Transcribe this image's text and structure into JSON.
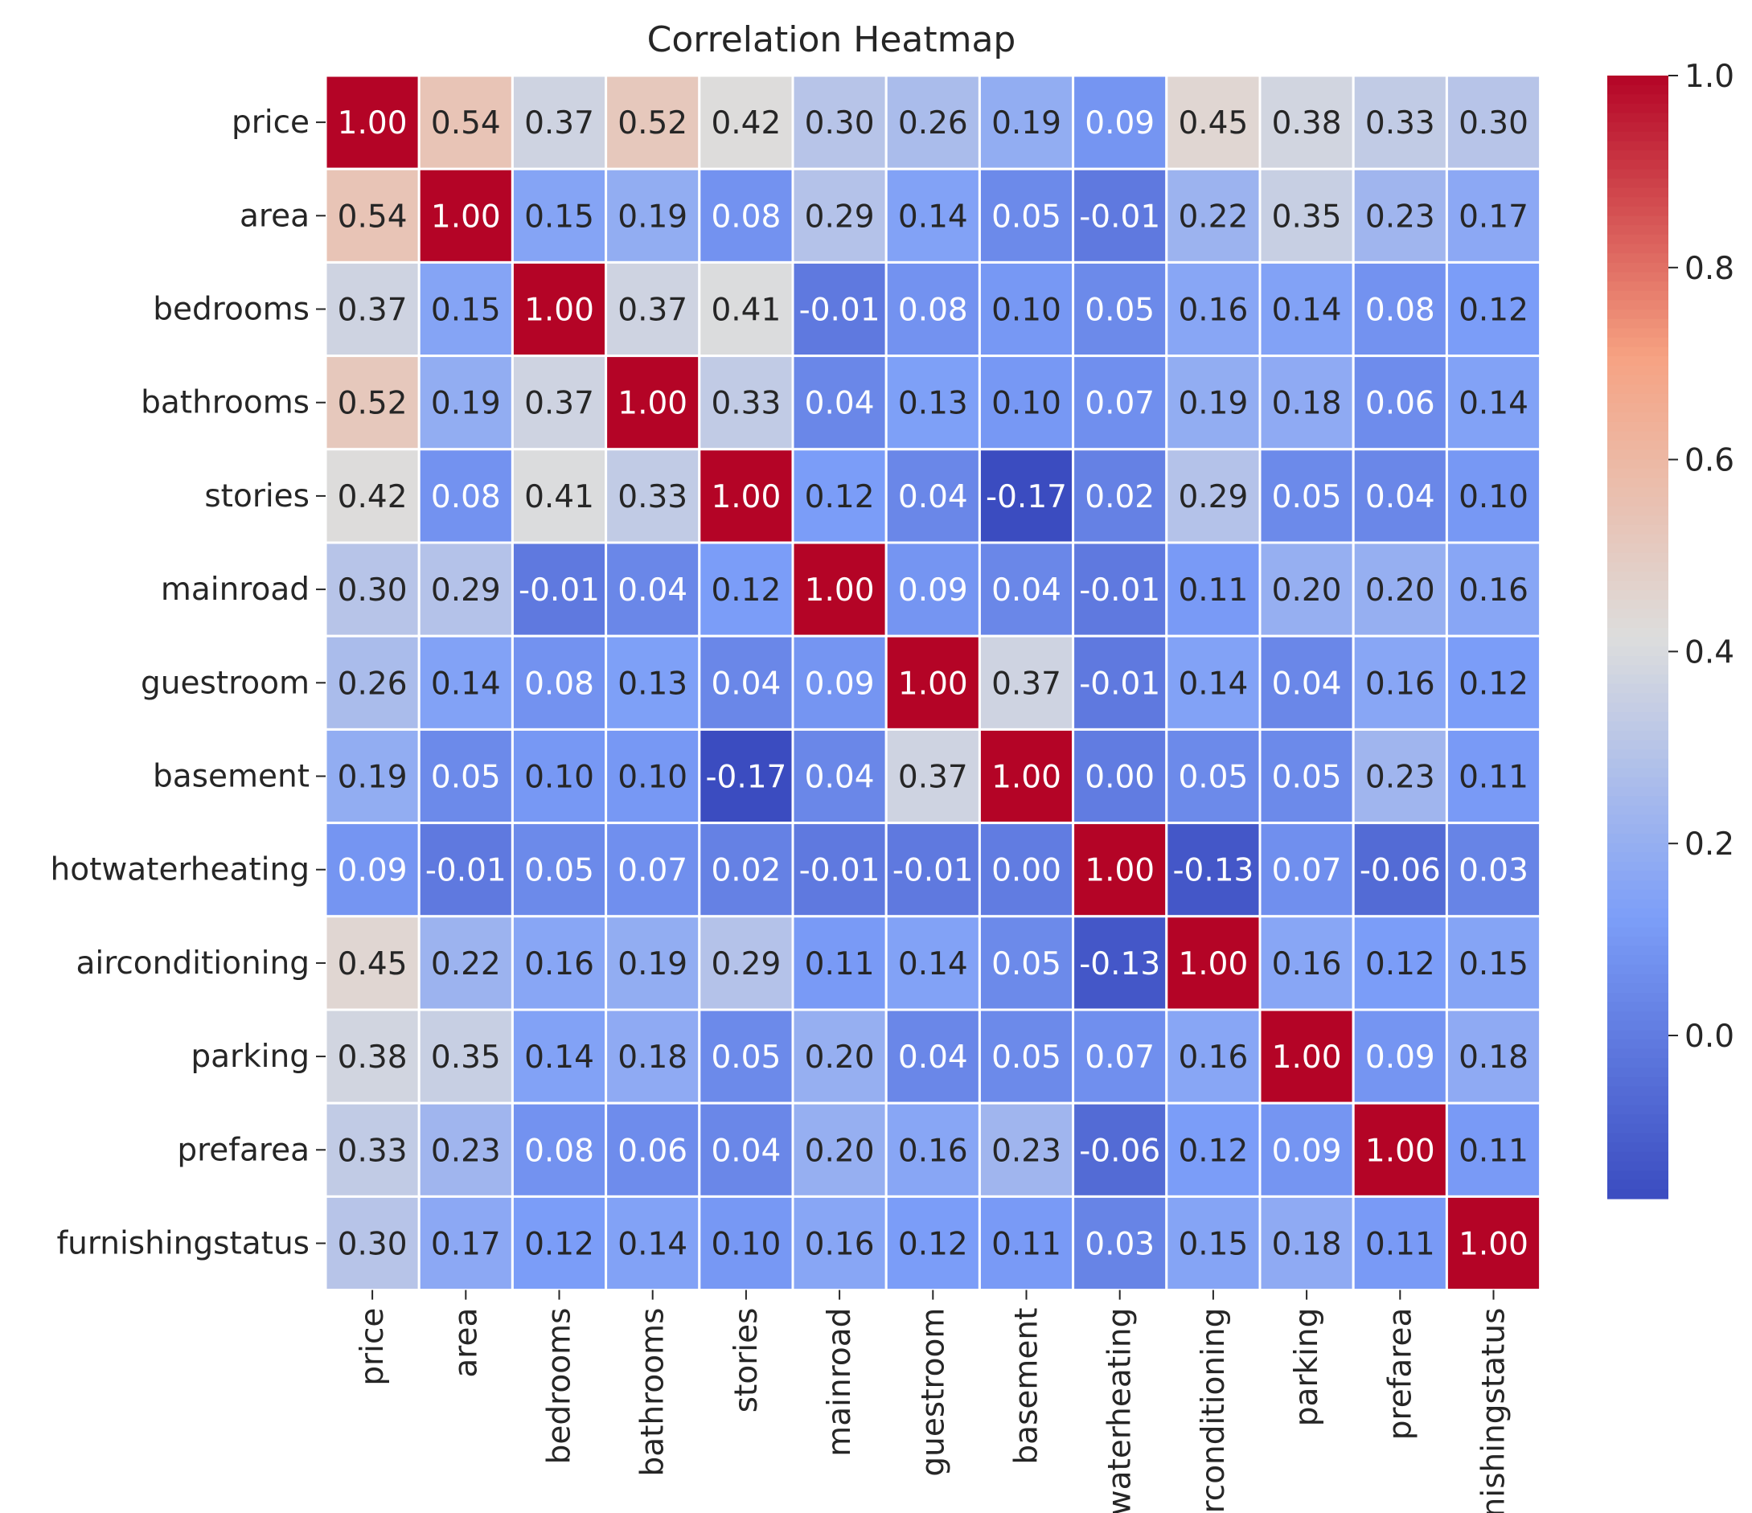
{
  "chart_data": {
    "type": "heatmap",
    "title": "Correlation Heatmap",
    "xlabel": "",
    "ylabel": "",
    "categories": [
      "price",
      "area",
      "bedrooms",
      "bathrooms",
      "stories",
      "mainroad",
      "guestroom",
      "basement",
      "hotwaterheating",
      "airconditioning",
      "parking",
      "prefarea",
      "furnishingstatus"
    ],
    "values": [
      [
        1.0,
        0.54,
        0.37,
        0.52,
        0.42,
        0.3,
        0.26,
        0.19,
        0.09,
        0.45,
        0.38,
        0.33,
        0.3
      ],
      [
        0.54,
        1.0,
        0.15,
        0.19,
        0.08,
        0.29,
        0.14,
        0.05,
        -0.01,
        0.22,
        0.35,
        0.23,
        0.17
      ],
      [
        0.37,
        0.15,
        1.0,
        0.37,
        0.41,
        -0.01,
        0.08,
        0.1,
        0.05,
        0.16,
        0.14,
        0.08,
        0.12
      ],
      [
        0.52,
        0.19,
        0.37,
        1.0,
        0.33,
        0.04,
        0.13,
        0.1,
        0.07,
        0.19,
        0.18,
        0.06,
        0.14
      ],
      [
        0.42,
        0.08,
        0.41,
        0.33,
        1.0,
        0.12,
        0.04,
        -0.17,
        0.02,
        0.29,
        0.05,
        0.04,
        0.1
      ],
      [
        0.3,
        0.29,
        -0.01,
        0.04,
        0.12,
        1.0,
        0.09,
        0.04,
        -0.01,
        0.11,
        0.2,
        0.2,
        0.16
      ],
      [
        0.26,
        0.14,
        0.08,
        0.13,
        0.04,
        0.09,
        1.0,
        0.37,
        -0.01,
        0.14,
        0.04,
        0.16,
        0.12
      ],
      [
        0.19,
        0.05,
        0.1,
        0.1,
        -0.17,
        0.04,
        0.37,
        1.0,
        0.0,
        0.05,
        0.05,
        0.23,
        0.11
      ],
      [
        0.09,
        -0.01,
        0.05,
        0.07,
        0.02,
        -0.01,
        -0.01,
        0.0,
        1.0,
        -0.13,
        0.07,
        -0.06,
        0.03
      ],
      [
        0.45,
        0.22,
        0.16,
        0.19,
        0.29,
        0.11,
        0.14,
        0.05,
        -0.13,
        1.0,
        0.16,
        0.12,
        0.15
      ],
      [
        0.38,
        0.35,
        0.14,
        0.18,
        0.05,
        0.2,
        0.04,
        0.05,
        0.07,
        0.16,
        1.0,
        0.09,
        0.18
      ],
      [
        0.33,
        0.23,
        0.08,
        0.06,
        0.04,
        0.2,
        0.16,
        0.23,
        -0.06,
        0.12,
        0.09,
        1.0,
        0.11
      ],
      [
        0.3,
        0.17,
        0.12,
        0.14,
        0.1,
        0.16,
        0.12,
        0.11,
        0.03,
        0.15,
        0.18,
        0.11,
        1.0
      ]
    ],
    "value_format": "0.00",
    "colormap": "coolwarm",
    "vmin": -0.17,
    "vmax": 1.0,
    "colorbar_ticks": [
      "0.0",
      "0.2",
      "0.4",
      "0.6",
      "0.8",
      "1.0"
    ],
    "colorbar_tick_values": [
      0.0,
      0.2,
      0.4,
      0.6,
      0.8,
      1.0
    ],
    "grid": true,
    "cell_border_color": "#ffffff",
    "colors": {
      "low": "#3b4cc0",
      "mid": "#dddddd",
      "high": "#b40426",
      "annotation_light": "#ffffff",
      "annotation_dark": "#262626"
    }
  }
}
